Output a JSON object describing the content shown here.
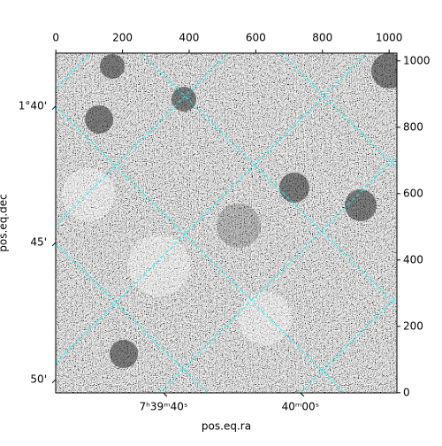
{
  "chart_data": {
    "type": "image",
    "xlabel": "pos.eq.ra",
    "ylabel": "pos.eq.dec",
    "xlim": [
      -0.5,
      1023.5
    ],
    "ylim": [
      -0.5,
      1023.5
    ],
    "xticks": [
      0,
      200,
      400,
      600,
      800,
      1000
    ],
    "yticks": [
      0,
      200,
      400,
      600,
      800,
      1000
    ],
    "ra_ticks": [
      {
        "value": 323,
        "label": "7ʰ39ᵐ40ˢ"
      },
      {
        "value": 734,
        "label": "40ᵐ00ˢ"
      }
    ],
    "dec_ticks": [
      {
        "value": 864,
        "label": "1°40'"
      },
      {
        "value": 453,
        "label": "45'"
      },
      {
        "value": 40,
        "label": "50'"
      }
    ],
    "grid_color": "#00ffff"
  }
}
